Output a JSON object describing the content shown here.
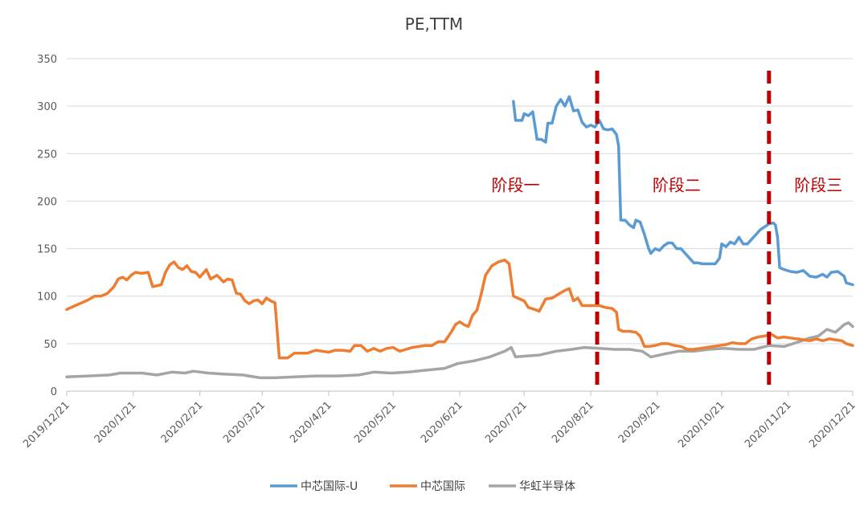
{
  "chart_data": {
    "type": "line",
    "title": "PE,TTM",
    "xlabel": "",
    "ylabel": "",
    "ylim": [
      0,
      350
    ],
    "yticks": [
      "0",
      "50",
      "100",
      "150",
      "200",
      "250",
      "300",
      "350"
    ],
    "xlim": [
      "2019/12/21",
      "2020/12/21"
    ],
    "xticks": [
      "2019/12/21",
      "2020/1/21",
      "2020/2/21",
      "2020/3/21",
      "2020/4/21",
      "2020/5/21",
      "2020/6/21",
      "2020/7/21",
      "2020/8/21",
      "2020/9/21",
      "2020/10/21",
      "2020/11/21",
      "2020/12/21"
    ],
    "grid": true,
    "legend_position": "bottom",
    "phase_lines": [
      {
        "date": "2020/8/24"
      },
      {
        "date": "2020/11/12"
      }
    ],
    "phase_labels": [
      {
        "text": "阶段一",
        "date": "2020/7/17",
        "y": 217
      },
      {
        "text": "阶段二",
        "date": "2020/9/30",
        "y": 217
      },
      {
        "text": "阶段三",
        "date": "2020/12/5",
        "y": 217
      }
    ],
    "series": [
      {
        "name": "中芯国际-U",
        "color": "#5b9bd5",
        "points": [
          [
            "2020/7/16",
            305
          ],
          [
            "2020/7/17",
            285
          ],
          [
            "2020/7/20",
            285
          ],
          [
            "2020/7/21",
            292
          ],
          [
            "2020/7/23",
            290
          ],
          [
            "2020/7/25",
            294
          ],
          [
            "2020/7/27",
            265
          ],
          [
            "2020/7/29",
            265
          ],
          [
            "2020/7/31",
            262
          ],
          [
            "2020/8/1",
            282
          ],
          [
            "2020/8/3",
            282
          ],
          [
            "2020/8/5",
            300
          ],
          [
            "2020/8/7",
            307
          ],
          [
            "2020/8/9",
            300
          ],
          [
            "2020/8/11",
            310
          ],
          [
            "2020/8/13",
            295
          ],
          [
            "2020/8/15",
            296
          ],
          [
            "2020/8/17",
            283
          ],
          [
            "2020/8/19",
            278
          ],
          [
            "2020/8/21",
            280
          ],
          [
            "2020/8/23",
            278
          ],
          [
            "2020/8/25",
            285
          ],
          [
            "2020/8/27",
            276
          ],
          [
            "2020/8/29",
            275
          ],
          [
            "2020/8/31",
            276
          ],
          [
            "2020/9/2",
            270
          ],
          [
            "2020/9/3",
            258
          ],
          [
            "2020/9/4",
            180
          ],
          [
            "2020/9/6",
            180
          ],
          [
            "2020/9/8",
            175
          ],
          [
            "2020/9/10",
            172
          ],
          [
            "2020/9/11",
            180
          ],
          [
            "2020/9/13",
            178
          ],
          [
            "2020/9/15",
            165
          ],
          [
            "2020/9/17",
            150
          ],
          [
            "2020/9/18",
            145
          ],
          [
            "2020/9/20",
            150
          ],
          [
            "2020/9/22",
            148
          ],
          [
            "2020/9/24",
            153
          ],
          [
            "2020/9/26",
            156
          ],
          [
            "2020/9/28",
            156
          ],
          [
            "2020/9/30",
            150
          ],
          [
            "2020/10/2",
            150
          ],
          [
            "2020/10/4",
            145
          ],
          [
            "2020/10/6",
            140
          ],
          [
            "2020/10/8",
            135
          ],
          [
            "2020/10/10",
            135
          ],
          [
            "2020/10/12",
            134
          ],
          [
            "2020/10/15",
            134
          ],
          [
            "2020/10/18",
            134
          ],
          [
            "2020/10/20",
            140
          ],
          [
            "2020/10/21",
            155
          ],
          [
            "2020/10/23",
            152
          ],
          [
            "2020/10/25",
            157
          ],
          [
            "2020/10/27",
            155
          ],
          [
            "2020/10/29",
            162
          ],
          [
            "2020/10/31",
            155
          ],
          [
            "2020/11/2",
            155
          ],
          [
            "2020/11/4",
            160
          ],
          [
            "2020/11/6",
            165
          ],
          [
            "2020/11/8",
            170
          ],
          [
            "2020/11/10",
            173
          ],
          [
            "2020/11/12",
            176
          ],
          [
            "2020/11/14",
            177
          ],
          [
            "2020/11/15",
            175
          ],
          [
            "2020/11/16",
            162
          ],
          [
            "2020/11/17",
            130
          ],
          [
            "2020/11/19",
            128
          ],
          [
            "2020/11/22",
            126
          ],
          [
            "2020/11/25",
            125
          ],
          [
            "2020/11/28",
            127
          ],
          [
            "2020/12/1",
            121
          ],
          [
            "2020/12/4",
            120
          ],
          [
            "2020/12/7",
            123
          ],
          [
            "2020/12/9",
            120
          ],
          [
            "2020/12/11",
            125
          ],
          [
            "2020/12/14",
            126
          ],
          [
            "2020/12/17",
            121
          ],
          [
            "2020/12/18",
            114
          ],
          [
            "2020/12/21",
            112
          ]
        ]
      },
      {
        "name": "中芯国际",
        "color": "#ed7d31",
        "points": [
          [
            "2019/12/21",
            86
          ],
          [
            "2019/12/23",
            88
          ],
          [
            "2019/12/25",
            90
          ],
          [
            "2019/12/28",
            93
          ],
          [
            "2019/12/31",
            96
          ],
          [
            "2020/1/3",
            100
          ],
          [
            "2020/1/6",
            100
          ],
          [
            "2020/1/9",
            103
          ],
          [
            "2020/1/12",
            110
          ],
          [
            "2020/1/14",
            118
          ],
          [
            "2020/1/16",
            120
          ],
          [
            "2020/1/18",
            117
          ],
          [
            "2020/1/20",
            122
          ],
          [
            "2020/1/22",
            125
          ],
          [
            "2020/1/25",
            124
          ],
          [
            "2020/1/28",
            125
          ],
          [
            "2020/1/30",
            110
          ],
          [
            "2020/2/3",
            112
          ],
          [
            "2020/2/5",
            125
          ],
          [
            "2020/2/7",
            133
          ],
          [
            "2020/2/9",
            136
          ],
          [
            "2020/2/11",
            130
          ],
          [
            "2020/2/13",
            128
          ],
          [
            "2020/2/15",
            132
          ],
          [
            "2020/2/17",
            126
          ],
          [
            "2020/2/19",
            125
          ],
          [
            "2020/2/21",
            120
          ],
          [
            "2020/2/24",
            128
          ],
          [
            "2020/2/26",
            118
          ],
          [
            "2020/2/29",
            122
          ],
          [
            "2020/3/3",
            115
          ],
          [
            "2020/3/5",
            118
          ],
          [
            "2020/3/7",
            117
          ],
          [
            "2020/3/9",
            103
          ],
          [
            "2020/3/11",
            102
          ],
          [
            "2020/3/13",
            95
          ],
          [
            "2020/3/15",
            92
          ],
          [
            "2020/3/17",
            95
          ],
          [
            "2020/3/19",
            96
          ],
          [
            "2020/3/21",
            92
          ],
          [
            "2020/3/23",
            98
          ],
          [
            "2020/3/25",
            95
          ],
          [
            "2020/3/27",
            93
          ],
          [
            "2020/3/29",
            35
          ],
          [
            "2020/3/31",
            35
          ],
          [
            "2020/4/2",
            35
          ],
          [
            "2020/4/5",
            40
          ],
          [
            "2020/4/8",
            40
          ],
          [
            "2020/4/11",
            40
          ],
          [
            "2020/4/15",
            43
          ],
          [
            "2020/4/18",
            42
          ],
          [
            "2020/4/21",
            41
          ],
          [
            "2020/4/24",
            43
          ],
          [
            "2020/4/27",
            43
          ],
          [
            "2020/5/1",
            42
          ],
          [
            "2020/5/3",
            48
          ],
          [
            "2020/5/6",
            48
          ],
          [
            "2020/5/9",
            42
          ],
          [
            "2020/5/12",
            45
          ],
          [
            "2020/5/15",
            42
          ],
          [
            "2020/5/18",
            45
          ],
          [
            "2020/5/21",
            46
          ],
          [
            "2020/5/24",
            42
          ],
          [
            "2020/5/27",
            44
          ],
          [
            "2020/5/30",
            46
          ],
          [
            "2020/6/2",
            47
          ],
          [
            "2020/6/5",
            48
          ],
          [
            "2020/6/8",
            48
          ],
          [
            "2020/6/11",
            52
          ],
          [
            "2020/6/14",
            52
          ],
          [
            "2020/6/17",
            62
          ],
          [
            "2020/6/19",
            70
          ],
          [
            "2020/6/21",
            73
          ],
          [
            "2020/6/23",
            70
          ],
          [
            "2020/6/25",
            68
          ],
          [
            "2020/6/27",
            80
          ],
          [
            "2020/6/29",
            85
          ],
          [
            "2020/7/1",
            102
          ],
          [
            "2020/7/3",
            122
          ],
          [
            "2020/7/6",
            132
          ],
          [
            "2020/7/9",
            136
          ],
          [
            "2020/7/12",
            138
          ],
          [
            "2020/7/14",
            134
          ],
          [
            "2020/7/16",
            100
          ],
          [
            "2020/7/18",
            98
          ],
          [
            "2020/7/21",
            95
          ],
          [
            "2020/7/23",
            88
          ],
          [
            "2020/7/26",
            86
          ],
          [
            "2020/7/28",
            84
          ],
          [
            "2020/7/31",
            97
          ],
          [
            "2020/8/3",
            98
          ],
          [
            "2020/8/6",
            102
          ],
          [
            "2020/8/9",
            106
          ],
          [
            "2020/8/11",
            108
          ],
          [
            "2020/8/13",
            95
          ],
          [
            "2020/8/15",
            98
          ],
          [
            "2020/8/17",
            90
          ],
          [
            "2020/8/20",
            90
          ],
          [
            "2020/8/22",
            90
          ],
          [
            "2020/8/25",
            90
          ],
          [
            "2020/8/28",
            88
          ],
          [
            "2020/8/31",
            87
          ],
          [
            "2020/9/2",
            83
          ],
          [
            "2020/9/3",
            65
          ],
          [
            "2020/9/5",
            63
          ],
          [
            "2020/9/8",
            63
          ],
          [
            "2020/9/11",
            62
          ],
          [
            "2020/9/13",
            58
          ],
          [
            "2020/9/15",
            47
          ],
          [
            "2020/9/17",
            47
          ],
          [
            "2020/9/20",
            48
          ],
          [
            "2020/9/23",
            50
          ],
          [
            "2020/9/26",
            50
          ],
          [
            "2020/9/29",
            48
          ],
          [
            "2020/10/2",
            47
          ],
          [
            "2020/10/5",
            44
          ],
          [
            "2020/10/8",
            44
          ],
          [
            "2020/10/11",
            45
          ],
          [
            "2020/10/14",
            46
          ],
          [
            "2020/10/17",
            47
          ],
          [
            "2020/10/20",
            48
          ],
          [
            "2020/10/23",
            49
          ],
          [
            "2020/10/26",
            51
          ],
          [
            "2020/10/29",
            50
          ],
          [
            "2020/11/1",
            50
          ],
          [
            "2020/11/4",
            55
          ],
          [
            "2020/11/7",
            57
          ],
          [
            "2020/11/10",
            58
          ],
          [
            "2020/11/13",
            60
          ],
          [
            "2020/11/16",
            56
          ],
          [
            "2020/11/19",
            57
          ],
          [
            "2020/11/22",
            56
          ],
          [
            "2020/11/25",
            55
          ],
          [
            "2020/11/28",
            54
          ],
          [
            "2020/12/1",
            53
          ],
          [
            "2020/12/4",
            55
          ],
          [
            "2020/12/7",
            53
          ],
          [
            "2020/12/10",
            55
          ],
          [
            "2020/12/13",
            54
          ],
          [
            "2020/12/16",
            53
          ],
          [
            "2020/12/18",
            50
          ],
          [
            "2020/12/21",
            48
          ]
        ]
      },
      {
        "name": "华虹半导体",
        "color": "#a5a5a5",
        "points": [
          [
            "2019/12/21",
            15
          ],
          [
            "2019/12/31",
            16
          ],
          [
            "2020/1/10",
            17
          ],
          [
            "2020/1/15",
            19
          ],
          [
            "2020/1/25",
            19
          ],
          [
            "2020/2/1",
            17
          ],
          [
            "2020/2/8",
            20
          ],
          [
            "2020/2/14",
            19
          ],
          [
            "2020/2/18",
            21
          ],
          [
            "2020/2/25",
            19
          ],
          [
            "2020/3/3",
            18
          ],
          [
            "2020/3/12",
            17
          ],
          [
            "2020/3/20",
            14
          ],
          [
            "2020/3/27",
            14
          ],
          [
            "2020/4/5",
            15
          ],
          [
            "2020/4/15",
            16
          ],
          [
            "2020/4/25",
            16
          ],
          [
            "2020/5/5",
            17
          ],
          [
            "2020/5/12",
            20
          ],
          [
            "2020/5/20",
            19
          ],
          [
            "2020/5/28",
            20
          ],
          [
            "2020/6/5",
            22
          ],
          [
            "2020/6/14",
            24
          ],
          [
            "2020/6/20",
            29
          ],
          [
            "2020/6/28",
            32
          ],
          [
            "2020/7/5",
            36
          ],
          [
            "2020/7/12",
            42
          ],
          [
            "2020/7/15",
            46
          ],
          [
            "2020/7/17",
            36
          ],
          [
            "2020/7/22",
            37
          ],
          [
            "2020/7/28",
            38
          ],
          [
            "2020/8/5",
            42
          ],
          [
            "2020/8/12",
            44
          ],
          [
            "2020/8/18",
            46
          ],
          [
            "2020/8/25",
            45
          ],
          [
            "2020/9/1",
            44
          ],
          [
            "2020/9/8",
            44
          ],
          [
            "2020/9/14",
            42
          ],
          [
            "2020/9/18",
            36
          ],
          [
            "2020/9/24",
            39
          ],
          [
            "2020/10/1",
            42
          ],
          [
            "2020/10/8",
            42
          ],
          [
            "2020/10/15",
            44
          ],
          [
            "2020/10/22",
            45
          ],
          [
            "2020/10/29",
            44
          ],
          [
            "2020/11/5",
            44
          ],
          [
            "2020/11/12",
            48
          ],
          [
            "2020/11/19",
            47
          ],
          [
            "2020/11/26",
            52
          ],
          [
            "2020/12/1",
            56
          ],
          [
            "2020/12/5",
            58
          ],
          [
            "2020/12/9",
            65
          ],
          [
            "2020/12/13",
            62
          ],
          [
            "2020/12/17",
            70
          ],
          [
            "2020/12/19",
            72
          ],
          [
            "2020/12/21",
            68
          ]
        ]
      }
    ]
  }
}
